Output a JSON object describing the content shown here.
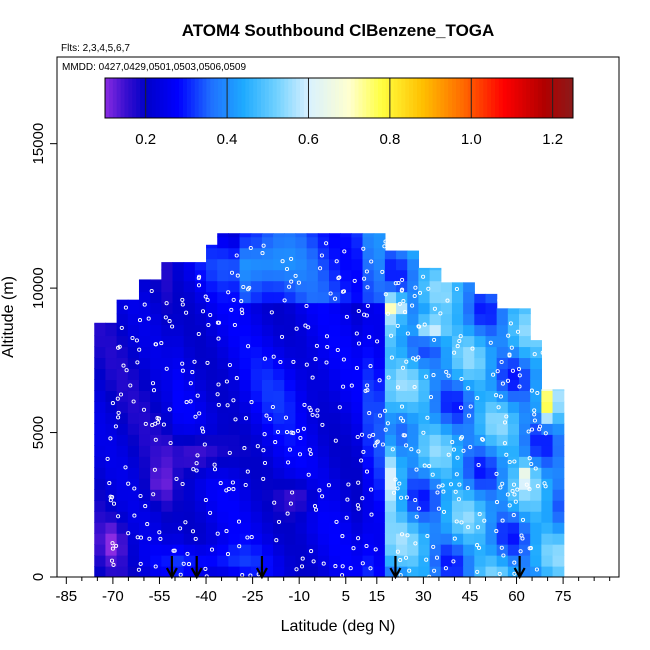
{
  "chart_data": {
    "type": "heatmap",
    "title": "ATOM4 Southbound ClBenzene_TOGA",
    "subtitle_flights": "Flts: 2,3,4,5,6,7",
    "subtitle_dates": "MMDD: 0427,0429,0501,0503,0506,0509",
    "xlabel": "Latitude (deg N)",
    "ylabel": "Altitude (m)",
    "xlim": [
      -88,
      93
    ],
    "ylim": [
      0,
      18000
    ],
    "x_ticks": [
      -85,
      -70,
      -55,
      -40,
      -25,
      -10,
      5,
      15,
      30,
      45,
      60,
      75
    ],
    "x_tick_labels": [
      "-85",
      "-70",
      "-55",
      "-40",
      "-25",
      "-10",
      "5",
      "15",
      "30",
      "45",
      "60",
      "75"
    ],
    "y_ticks": [
      0,
      5000,
      10000,
      15000
    ],
    "y_tick_labels": [
      "0",
      "5000",
      "10000",
      "15000"
    ],
    "colorbar": {
      "range": [
        0.1,
        1.25
      ],
      "ticks": [
        0.2,
        0.4,
        0.6,
        0.8,
        1.0,
        1.2
      ],
      "tick_labels": [
        "0.2",
        "0.4",
        "0.6",
        "0.8",
        "1.0",
        "1.2"
      ],
      "stops": [
        {
          "v": 0.1,
          "c": "#8a2be2"
        },
        {
          "v": 0.15,
          "c": "#3a0fd0"
        },
        {
          "v": 0.2,
          "c": "#0000c8"
        },
        {
          "v": 0.28,
          "c": "#0000ff"
        },
        {
          "v": 0.36,
          "c": "#1f6fff"
        },
        {
          "v": 0.44,
          "c": "#1eaaff"
        },
        {
          "v": 0.52,
          "c": "#6fd0ff"
        },
        {
          "v": 0.6,
          "c": "#d8f1ff"
        },
        {
          "v": 0.7,
          "c": "#ffffd0"
        },
        {
          "v": 0.78,
          "c": "#ffff40"
        },
        {
          "v": 0.88,
          "c": "#ffc000"
        },
        {
          "v": 0.98,
          "c": "#ff6a00"
        },
        {
          "v": 1.08,
          "c": "#ff0000"
        },
        {
          "v": 1.18,
          "c": "#b00000"
        },
        {
          "v": 1.25,
          "c": "#8b1a1a"
        }
      ]
    },
    "flight_markers_lat": [
      -51,
      -43,
      -22,
      21,
      61
    ],
    "colors": {
      "sample_point": "#ffffff",
      "arrow": "#000000",
      "frame": "#000000"
    }
  }
}
